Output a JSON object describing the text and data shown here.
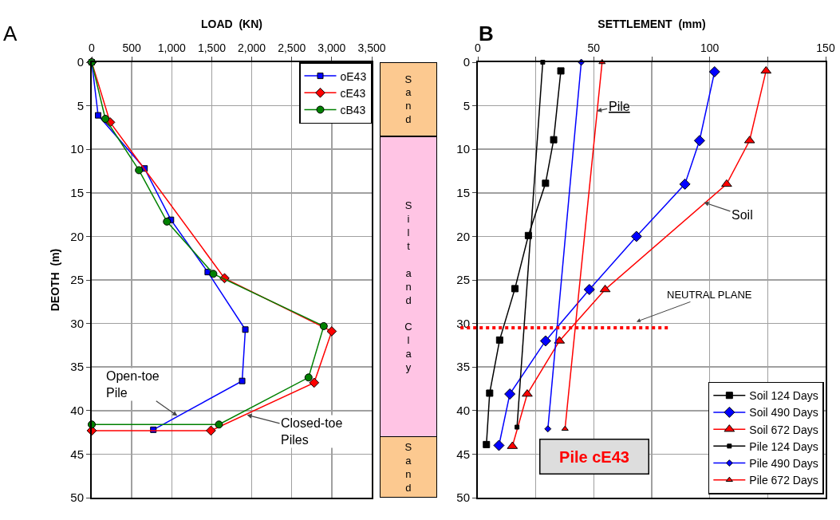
{
  "chart_data": [
    {
      "type": "line",
      "orientation": "horizontal",
      "xlabel": "LOAD  (KN)",
      "ylabel": "DEOTH  (m)",
      "xlim": [
        0,
        3500
      ],
      "xticks": [
        0,
        500,
        {
          "value": 1000,
          "label": "1,000"
        },
        {
          "value": 1500,
          "label": "1,500"
        },
        {
          "value": 2000,
          "label": "2,000"
        },
        {
          "value": 2500,
          "label": "2,500"
        },
        {
          "value": 3000,
          "label": "3,000"
        },
        {
          "value": 3500,
          "label": "3,500"
        }
      ],
      "ylim": [
        50,
        0
      ],
      "yticks": [
        0,
        5,
        10,
        15,
        20,
        25,
        30,
        35,
        40,
        45,
        50
      ],
      "grid": true,
      "legend": "top right",
      "series": [
        {
          "name": "oE43",
          "color": "#0000ff",
          "marker": "square",
          "x": [
            0,
            6.1,
            12.2,
            18.1,
            24.1,
            30.7,
            36.6,
            42.2
          ],
          "values": [
            0,
            80,
            660,
            990,
            1450,
            1920,
            1880,
            770
          ]
        },
        {
          "name": "cE43",
          "color": "#ff0000",
          "marker": "diamond",
          "x": [
            0,
            6.9,
            24.8,
            30.9,
            36.8,
            42.3,
            42.3
          ],
          "values": [
            0,
            230,
            1660,
            3000,
            2780,
            1490,
            0
          ]
        },
        {
          "name": "cB43",
          "color": "#008000",
          "marker": "circle",
          "x": [
            0,
            6.5,
            12.4,
            18.3,
            24.3,
            30.3,
            36.2,
            41.6,
            41.6
          ],
          "values": [
            0,
            170,
            590,
            940,
            1520,
            2900,
            2710,
            1590,
            0
          ]
        }
      ],
      "annotations": [
        "A",
        {
          "text": "Open-toe\nPile",
          "x": 1070,
          "y": 40.6
        },
        {
          "text": "Closed-toe\nPiles",
          "x": 1940,
          "y": 40.5
        }
      ]
    },
    {
      "type": "bar",
      "stacked": true,
      "categories": [
        null
      ],
      "ylim": [
        50,
        0
      ],
      "series": [
        {
          "name": "Sand",
          "color": "#fcc990",
          "values": [
            8.5
          ]
        },
        {
          "name": "Silt and Clay",
          "color": "#ffc4e4",
          "values": [
            34.5
          ]
        },
        {
          "name": "Sand",
          "color": "#fcc990",
          "values": [
            7
          ]
        }
      ]
    },
    {
      "type": "line",
      "orientation": "horizontal",
      "xlabel": "SETTLEMENT  (mm)",
      "xlim": [
        0,
        150
      ],
      "xticks": [
        0,
        {
          "value": 25,
          "label": null
        },
        50,
        {
          "value": 75,
          "label": null
        },
        100,
        {
          "value": 125,
          "label": null
        },
        150
      ],
      "ylim": [
        50,
        0
      ],
      "yticks": [
        0,
        5,
        10,
        15,
        20,
        25,
        30,
        35,
        40,
        45,
        50
      ],
      "grid": true,
      "legend": "bottom right",
      "series": [
        {
          "name": "Soil 124 Days",
          "color": "#000000",
          "marker": "square",
          "x": [
            1.0,
            8.9,
            13.9,
            19.9,
            26.0,
            31.9,
            38.0,
            43.9
          ],
          "values": [
            35.8,
            32.7,
            29.2,
            21.8,
            16.0,
            9.4,
            5.1,
            3.7
          ]
        },
        {
          "name": "Soil 490 Days",
          "color": "#0000ff",
          "marker": "diamond",
          "x": [
            1.1,
            9.0,
            14.0,
            20.0,
            26.1,
            32.0,
            38.1,
            44.0
          ],
          "values": [
            102.1,
            95.6,
            89.3,
            68.4,
            48.1,
            29.2,
            13.8,
            9.1
          ]
        },
        {
          "name": "Soil 672 Days",
          "color": "#ff0000",
          "marker": "triangle",
          "x": [
            1.0,
            9.0,
            14.0,
            26.1,
            32.0,
            38.1,
            44.1
          ],
          "values": [
            124.3,
            117.2,
            107.3,
            54.9,
            35.2,
            21.3,
            14.9
          ]
        },
        {
          "name": "Pile 124 Days",
          "color": "#000000",
          "marker": "square",
          "x": [
            0,
            41.9
          ],
          "values": [
            28.0,
            16.9
          ]
        },
        {
          "name": "Pile 490 Days",
          "color": "#0000ff",
          "marker": "diamond",
          "x": [
            0,
            42.1
          ],
          "values": [
            44.6,
            30.2
          ]
        },
        {
          "name": "Pile 672 Days",
          "color": "#ff0000",
          "marker": "triangle",
          "x": [
            0,
            42.1
          ],
          "values": [
            53.6,
            37.6
          ]
        }
      ],
      "ref_lines": [
        {
          "axis": "y",
          "value": 30.5,
          "label": "NEUTRAL PLANE",
          "color": "#ff0000",
          "line_style": "dotted"
        }
      ],
      "annotations": [
        "B",
        {
          "text": "Pile",
          "x": 51.3,
          "y": 5.6
        },
        {
          "text": "Soil",
          "x": 97.5,
          "y": 16.1
        },
        "Pile cE43"
      ]
    }
  ]
}
